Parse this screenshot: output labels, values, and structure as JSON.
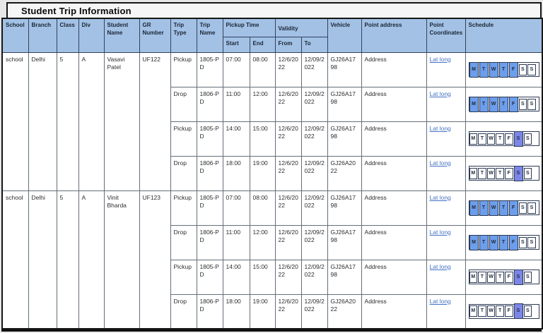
{
  "title": "Student Trip Information",
  "columns": {
    "school": "School",
    "branch": "Branch",
    "class": "Class",
    "div": "Div",
    "student_name": "Student Name",
    "gr_number": "GR Number",
    "trip_type": "Trip Type",
    "trip_name": "Trip Name",
    "pickup_time": "Pickup Time",
    "validity": "Validity",
    "start": "Start",
    "end": "End",
    "from": "From",
    "to": "To",
    "vehicle": "Vehicle",
    "point_address": "Point address",
    "point_coordinates": "Point Coordinates",
    "schedule": "Schedule"
  },
  "schedule_days": [
    "M",
    "T",
    "W",
    "T",
    "F",
    "S",
    "S"
  ],
  "colors": {
    "header_bg": "#a3c1e5",
    "weekday_active": "#6d9eeb",
    "saturday_active": "#7b86e8",
    "link": "#4472c4"
  },
  "students": [
    {
      "school": "school",
      "branch": "Delhi",
      "class": "5",
      "div": "A",
      "student_name": "Vasavi Patel",
      "gr_number": "UF122",
      "trips": [
        {
          "trip_type": "Pickup",
          "trip_name": "1805-PD",
          "start": "07:00",
          "end": "08:00",
          "from": "12/6/2022",
          "to": "12/09/2022",
          "vehicle": "GJ26A1798",
          "point_address": "Address",
          "point_coordinates": "Lat long",
          "active_days": [
            0,
            1,
            2,
            3,
            4
          ],
          "highlight": "weekday"
        },
        {
          "trip_type": "Drop",
          "trip_name": "1806-PD",
          "start": "11:00",
          "end": "12:00",
          "from": "12/6/2022",
          "to": "12/09/2022",
          "vehicle": "GJ26A1798",
          "point_address": "Address",
          "point_coordinates": "Lat long",
          "active_days": [
            0,
            1,
            2,
            3,
            4
          ],
          "highlight": "weekday"
        },
        {
          "trip_type": "Pickup",
          "trip_name": "1805-PD",
          "start": "14:00",
          "end": "15:00",
          "from": "12/6/2022",
          "to": "12/09/2022",
          "vehicle": "GJ26A1798",
          "point_address": "Address",
          "point_coordinates": "Lat long",
          "active_days": [
            5
          ],
          "highlight": "saturday"
        },
        {
          "trip_type": "Drop",
          "trip_name": "1806-PD",
          "start": "18:00",
          "end": "19:00",
          "from": "12/6/2022",
          "to": "12/09/2022",
          "vehicle": "GJ26A2022",
          "point_address": "Address",
          "point_coordinates": "Lat long",
          "active_days": [
            5
          ],
          "highlight": "saturday"
        }
      ]
    },
    {
      "school": "school",
      "branch": "Delhi",
      "class": "5",
      "div": "A",
      "student_name": "Vinit Bharda",
      "gr_number": "UF123",
      "trips": [
        {
          "trip_type": "Pickup",
          "trip_name": "1805-PD",
          "start": "07:00",
          "end": "08:00",
          "from": "12/6/2022",
          "to": "12/09/2022",
          "vehicle": "GJ26A1798",
          "point_address": "Address",
          "point_coordinates": "Lat long",
          "active_days": [
            0,
            1,
            2,
            3,
            4
          ],
          "highlight": "weekday"
        },
        {
          "trip_type": "Drop",
          "trip_name": "1806-PD",
          "start": "11:00",
          "end": "12:00",
          "from": "12/6/2022",
          "to": "12/09/2022",
          "vehicle": "GJ26A1798",
          "point_address": "Address",
          "point_coordinates": "Lat long",
          "active_days": [
            0,
            1,
            2,
            3,
            4
          ],
          "highlight": "weekday"
        },
        {
          "trip_type": "Pickup",
          "trip_name": "1805-PD",
          "start": "14:00",
          "end": "15:00",
          "from": "12/6/2022",
          "to": "12/09/2022",
          "vehicle": "GJ26A1798",
          "point_address": "Address",
          "point_coordinates": "Lat long",
          "active_days": [
            5
          ],
          "highlight": "saturday"
        },
        {
          "trip_type": "Drop",
          "trip_name": "1806-PD",
          "start": "18:00",
          "end": "19:00",
          "from": "12/6/2022",
          "to": "12/09/2022",
          "vehicle": "GJ26A2022",
          "point_address": "Address",
          "point_coordinates": "Lat long",
          "active_days": [
            5
          ],
          "highlight": "saturday"
        }
      ]
    }
  ]
}
